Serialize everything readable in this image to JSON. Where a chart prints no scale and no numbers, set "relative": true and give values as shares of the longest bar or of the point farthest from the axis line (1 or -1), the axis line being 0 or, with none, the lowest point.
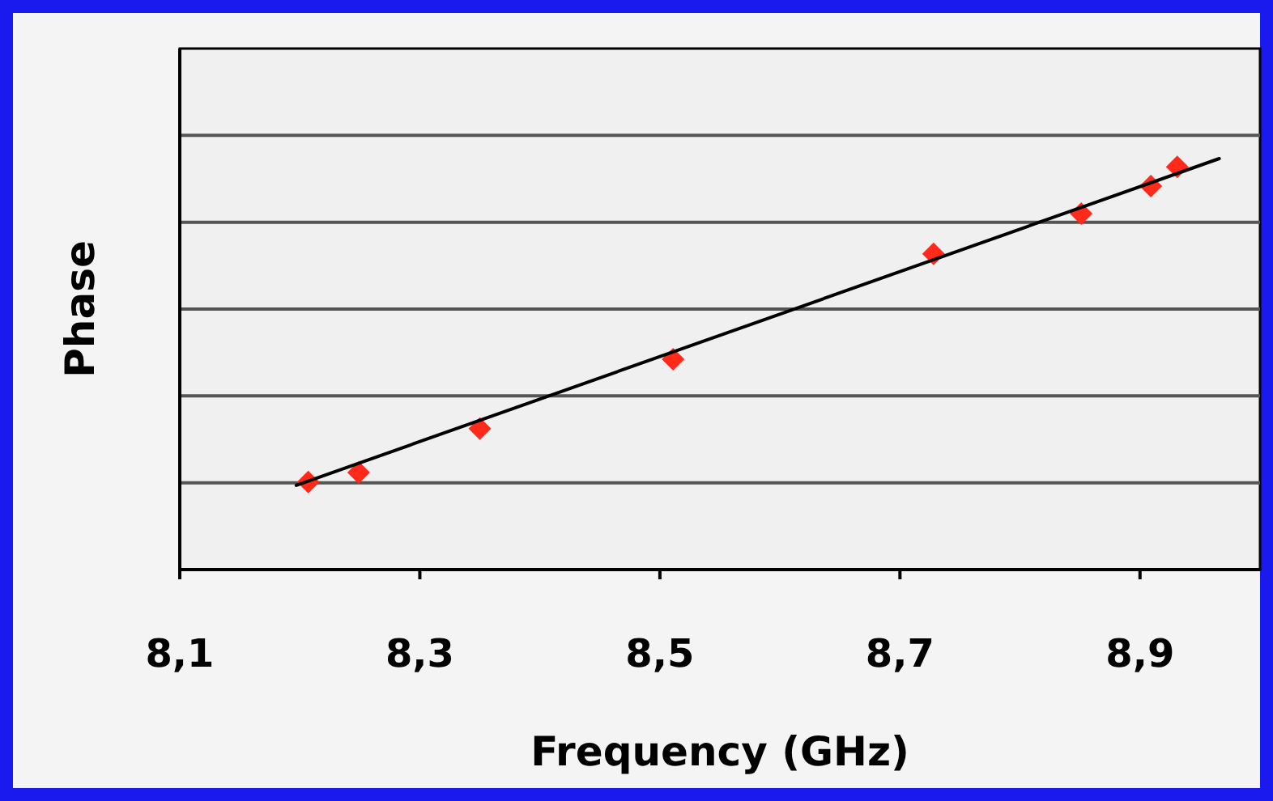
{
  "chart_data": {
    "type": "scatter",
    "xlabel": "Frequency (GHz)",
    "ylabel": "Phase",
    "relative": true,
    "grid": "y",
    "xlim": [
      8.1,
      9.0
    ],
    "xticks": [
      {
        "value": 8.1,
        "label": "8,1"
      },
      {
        "value": 8.3,
        "label": "8,3"
      },
      {
        "value": 8.5,
        "label": "8,5"
      },
      {
        "value": 8.7,
        "label": "8,7"
      },
      {
        "value": 8.9,
        "label": "8,9"
      }
    ],
    "series": [
      {
        "color": "#ff2a1a",
        "marker": "diamond",
        "x": [
          8.207,
          8.249,
          8.35,
          8.511,
          8.728,
          8.851,
          8.909,
          8.931
        ],
        "values": [
          0.213,
          0.236,
          0.343,
          0.512,
          0.768,
          0.866,
          0.933,
          0.98
        ]
      },
      {
        "type": "line",
        "color": "#000000",
        "marker": "none",
        "x": [
          8.197,
          8.966
        ],
        "values": [
          0.205,
          1
        ]
      }
    ]
  }
}
